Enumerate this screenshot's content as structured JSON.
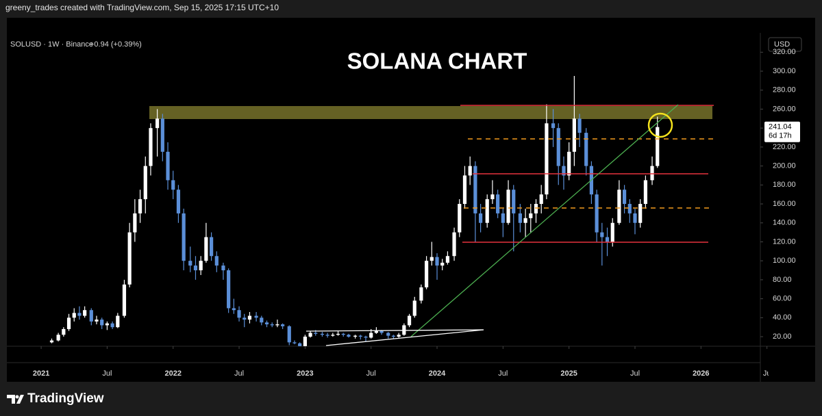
{
  "header": {
    "text": "greeny_trades created with TradingView.com, Sep 15, 2025 17:15 UTC+10"
  },
  "brand": "TradingView",
  "chart_data": {
    "type": "candlestick",
    "title": "SOLANA CHART",
    "symbol": "SOLUSD · 1W · Binance",
    "change": "+0.94 (+0.39%)",
    "currency": "USD",
    "last_price": 241.04,
    "countdown": "6d 17h",
    "up_color": "#ffffff",
    "down_color": "#5b8fd8",
    "xlim": [
      2020.74,
      2026.45
    ],
    "xticks": [
      2021,
      {
        "value": 2021.5,
        "label": "Jul"
      },
      2022,
      {
        "value": 2022.5,
        "label": "Jul"
      },
      2023,
      {
        "value": 2023.5,
        "label": "Jul"
      },
      2024,
      {
        "value": 2024.5,
        "label": "Jul"
      },
      2025,
      {
        "value": 2025.5,
        "label": "Jul"
      },
      2026,
      {
        "value": 2026.5,
        "label": "Ju"
      }
    ],
    "ylim": [
      10,
      340
    ],
    "yticks": [
      {
        "value": 20,
        "label": "20.00"
      },
      {
        "value": 40,
        "label": "40.00"
      },
      {
        "value": 60,
        "label": "60.00"
      },
      {
        "value": 80,
        "label": "80.00"
      },
      {
        "value": 100,
        "label": "100.00"
      },
      {
        "value": 120,
        "label": "120.00"
      },
      {
        "value": 140,
        "label": "140.00"
      },
      {
        "value": 160,
        "label": "160.00"
      },
      {
        "value": 180,
        "label": "180.00"
      },
      {
        "value": 200,
        "label": "200.00"
      },
      {
        "value": 220,
        "label": "220.00"
      },
      {
        "value": 240,
        "label": "240.00"
      },
      {
        "value": 260,
        "label": "260.00"
      },
      {
        "value": 280,
        "label": "280.00"
      },
      {
        "value": 300,
        "label": "300.00"
      },
      {
        "value": 320,
        "label": "320.00"
      }
    ],
    "candles": [
      [
        2021.08,
        14,
        18,
        13,
        16
      ],
      [
        2021.13,
        16,
        24,
        15,
        22
      ],
      [
        2021.17,
        22,
        30,
        20,
        28
      ],
      [
        2021.21,
        28,
        44,
        26,
        40
      ],
      [
        2021.25,
        40,
        50,
        36,
        45
      ],
      [
        2021.29,
        45,
        52,
        38,
        42
      ],
      [
        2021.33,
        42,
        52,
        40,
        48
      ],
      [
        2021.38,
        48,
        50,
        32,
        36
      ],
      [
        2021.42,
        36,
        42,
        33,
        38
      ],
      [
        2021.46,
        38,
        40,
        28,
        32
      ],
      [
        2021.5,
        32,
        36,
        27,
        34
      ],
      [
        2021.54,
        34,
        36,
        28,
        30
      ],
      [
        2021.58,
        30,
        45,
        29,
        42
      ],
      [
        2021.63,
        42,
        80,
        40,
        75
      ],
      [
        2021.67,
        75,
        140,
        72,
        130
      ],
      [
        2021.71,
        130,
        165,
        120,
        150
      ],
      [
        2021.75,
        150,
        175,
        140,
        165
      ],
      [
        2021.79,
        165,
        210,
        150,
        200
      ],
      [
        2021.83,
        200,
        245,
        190,
        240
      ],
      [
        2021.88,
        240,
        260,
        210,
        250
      ],
      [
        2021.92,
        250,
        255,
        205,
        215
      ],
      [
        2021.96,
        215,
        225,
        175,
        185
      ],
      [
        2022,
        185,
        195,
        165,
        175
      ],
      [
        2022.04,
        175,
        180,
        140,
        150
      ],
      [
        2022.08,
        150,
        155,
        90,
        100
      ],
      [
        2022.13,
        100,
        115,
        88,
        95
      ],
      [
        2022.17,
        95,
        105,
        80,
        90
      ],
      [
        2022.21,
        90,
        105,
        85,
        100
      ],
      [
        2022.25,
        100,
        140,
        98,
        125
      ],
      [
        2022.29,
        125,
        130,
        100,
        105
      ],
      [
        2022.33,
        105,
        110,
        88,
        95
      ],
      [
        2022.38,
        95,
        98,
        80,
        90
      ],
      [
        2022.42,
        90,
        92,
        45,
        50
      ],
      [
        2022.46,
        50,
        60,
        44,
        48
      ],
      [
        2022.5,
        48,
        52,
        36,
        40
      ],
      [
        2022.54,
        40,
        44,
        30,
        38
      ],
      [
        2022.58,
        38,
        46,
        34,
        42
      ],
      [
        2022.63,
        42,
        46,
        36,
        40
      ],
      [
        2022.67,
        40,
        42,
        32,
        35
      ],
      [
        2022.71,
        35,
        37,
        30,
        33
      ],
      [
        2022.75,
        33,
        35,
        30,
        32
      ],
      [
        2022.79,
        32,
        38,
        30,
        33
      ],
      [
        2022.83,
        33,
        34,
        28,
        31
      ],
      [
        2022.88,
        31,
        32,
        11,
        14
      ],
      [
        2022.92,
        14,
        16,
        12,
        13
      ],
      [
        2022.96,
        13,
        14,
        9,
        10
      ],
      [
        2023,
        10,
        22,
        9,
        20
      ],
      [
        2023.04,
        20,
        26,
        19,
        24
      ],
      [
        2023.08,
        24,
        27,
        21,
        23
      ],
      [
        2023.13,
        23,
        25,
        20,
        22
      ],
      [
        2023.17,
        22,
        24,
        19,
        21
      ],
      [
        2023.21,
        21,
        24,
        20,
        22
      ],
      [
        2023.25,
        22,
        26,
        21,
        23
      ],
      [
        2023.29,
        23,
        24,
        20,
        22
      ],
      [
        2023.33,
        22,
        23,
        19,
        20
      ],
      [
        2023.38,
        20,
        22,
        18,
        21
      ],
      [
        2023.42,
        21,
        22,
        17,
        20
      ],
      [
        2023.46,
        20,
        21,
        15,
        19
      ],
      [
        2023.5,
        19,
        28,
        18,
        24
      ],
      [
        2023.54,
        24,
        30,
        23,
        26
      ],
      [
        2023.58,
        26,
        27,
        22,
        24
      ],
      [
        2023.63,
        24,
        25,
        18,
        21
      ],
      [
        2023.67,
        21,
        22,
        18,
        20
      ],
      [
        2023.71,
        20,
        24,
        19,
        22
      ],
      [
        2023.75,
        22,
        34,
        21,
        32
      ],
      [
        2023.79,
        32,
        44,
        30,
        42
      ],
      [
        2023.83,
        42,
        62,
        40,
        58
      ],
      [
        2023.88,
        58,
        75,
        55,
        72
      ],
      [
        2023.92,
        72,
        105,
        70,
        100
      ],
      [
        2023.96,
        100,
        120,
        95,
        104
      ],
      [
        2024,
        104,
        108,
        80,
        95
      ],
      [
        2024.04,
        95,
        102,
        90,
        98
      ],
      [
        2024.08,
        98,
        110,
        96,
        105
      ],
      [
        2024.13,
        105,
        135,
        100,
        130
      ],
      [
        2024.17,
        130,
        165,
        125,
        160
      ],
      [
        2024.21,
        160,
        200,
        155,
        190
      ],
      [
        2024.25,
        190,
        210,
        180,
        200
      ],
      [
        2024.29,
        200,
        205,
        120,
        150
      ],
      [
        2024.33,
        150,
        160,
        130,
        140
      ],
      [
        2024.38,
        140,
        170,
        135,
        165
      ],
      [
        2024.42,
        165,
        185,
        160,
        170
      ],
      [
        2024.46,
        170,
        175,
        145,
        150
      ],
      [
        2024.5,
        150,
        155,
        125,
        140
      ],
      [
        2024.54,
        140,
        185,
        138,
        175
      ],
      [
        2024.58,
        175,
        180,
        110,
        150
      ],
      [
        2024.63,
        150,
        160,
        130,
        140
      ],
      [
        2024.67,
        140,
        155,
        125,
        145
      ],
      [
        2024.71,
        145,
        160,
        130,
        150
      ],
      [
        2024.75,
        150,
        165,
        140,
        160
      ],
      [
        2024.79,
        160,
        180,
        150,
        170
      ],
      [
        2024.83,
        170,
        265,
        165,
        245
      ],
      [
        2024.88,
        245,
        260,
        220,
        240
      ],
      [
        2024.92,
        240,
        245,
        180,
        200
      ],
      [
        2024.96,
        200,
        210,
        175,
        190
      ],
      [
        2025,
        190,
        225,
        185,
        215
      ],
      [
        2025.04,
        215,
        295,
        200,
        250
      ],
      [
        2025.08,
        250,
        255,
        220,
        235
      ],
      [
        2025.13,
        235,
        240,
        190,
        200
      ],
      [
        2025.17,
        200,
        205,
        160,
        170
      ],
      [
        2025.21,
        170,
        175,
        120,
        130
      ],
      [
        2025.25,
        130,
        140,
        95,
        125
      ],
      [
        2025.29,
        125,
        135,
        105,
        120
      ],
      [
        2025.33,
        120,
        145,
        115,
        140
      ],
      [
        2025.38,
        140,
        185,
        138,
        175
      ],
      [
        2025.42,
        175,
        180,
        150,
        160
      ],
      [
        2025.46,
        160,
        165,
        140,
        150
      ],
      [
        2025.5,
        150,
        155,
        128,
        140
      ],
      [
        2025.54,
        140,
        165,
        135,
        160
      ],
      [
        2025.58,
        160,
        190,
        155,
        185
      ],
      [
        2025.63,
        185,
        210,
        180,
        200
      ],
      [
        2025.67,
        200,
        252,
        198,
        241.04
      ]
    ]
  }
}
